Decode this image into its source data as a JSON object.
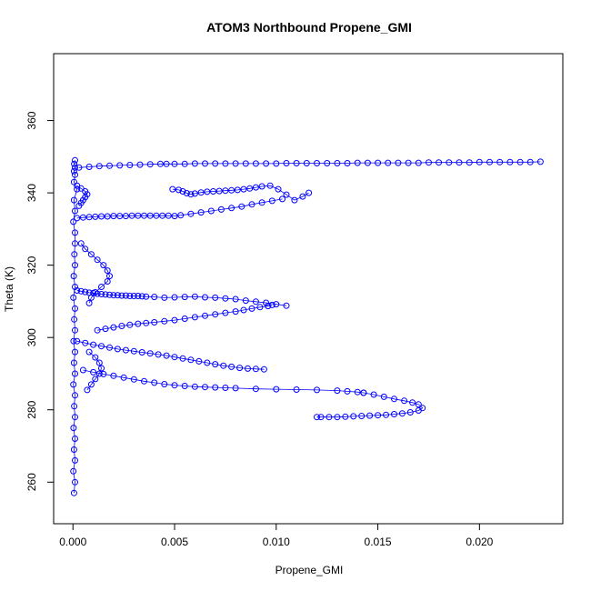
{
  "chart_data": {
    "type": "scatter",
    "title": "ATOM3 Northbound Propene_GMI",
    "xlabel": "Propene_GMI",
    "ylabel": "Theta (K)",
    "xlim": [
      -0.00095,
      0.0241
    ],
    "ylim": [
      248.5,
      378.5
    ],
    "x_ticks": [
      0.0,
      0.005,
      0.01,
      0.015,
      0.02
    ],
    "x_tick_labels": [
      "0.000",
      "0.005",
      "0.010",
      "0.015",
      "0.020"
    ],
    "y_ticks": [
      260,
      280,
      300,
      320,
      340,
      360
    ],
    "y_tick_labels": [
      "260",
      "280",
      "300",
      "320",
      "340",
      "360"
    ],
    "grid": false,
    "legend": "none",
    "marker": "open-circle",
    "connect_points": true,
    "color": "#0000ff",
    "series": [
      {
        "x": [
          5e-05,
          0.0001,
          2e-05,
          0.0001,
          5e-05,
          0.0001,
          3e-05,
          0.0001,
          6e-05,
          0.0001,
          2e-05,
          0.0001,
          5e-05,
          0.0001,
          3e-05,
          0.0001,
          6e-05,
          0.0001,
          2e-05,
          0.0001,
          4e-05,
          0.0001,
          7e-05,
          0.0001,
          0.0001,
          2e-05,
          0.0001,
          5e-05,
          0.0002,
          5e-05,
          0.0001,
          5e-05,
          0.0001,
          6e-05,
          0.0001
        ],
        "y": [
          257,
          260,
          263,
          266,
          269,
          272,
          275,
          278,
          281,
          284,
          287,
          290,
          293,
          296,
          299,
          302,
          305,
          308,
          311,
          314,
          317,
          320,
          323,
          326,
          329,
          332,
          335,
          338,
          341,
          343,
          345,
          346,
          347,
          348,
          349
        ]
      },
      {
        "x": [
          0.0003,
          0.0008,
          0.0013,
          0.0018,
          0.0023,
          0.0028,
          0.0033,
          0.0038,
          0.0043,
          0.0046,
          0.005,
          0.0055,
          0.006,
          0.0065,
          0.007,
          0.0075,
          0.008,
          0.0085,
          0.009,
          0.0095,
          0.01,
          0.0105,
          0.011,
          0.0115,
          0.012,
          0.0125,
          0.013,
          0.0135,
          0.014,
          0.0145,
          0.015,
          0.0155,
          0.016,
          0.0165,
          0.017,
          0.0175,
          0.018,
          0.0185,
          0.019,
          0.0195,
          0.02,
          0.0205,
          0.021,
          0.0215,
          0.022,
          0.0225,
          0.023
        ],
        "y": [
          347,
          347.2,
          347.4,
          347.5,
          347.6,
          347.7,
          347.8,
          347.9,
          348,
          348,
          348,
          348,
          348.1,
          348.1,
          348.1,
          348.1,
          348.1,
          348.1,
          348.1,
          348.1,
          348.1,
          348.2,
          348.2,
          348.2,
          348.2,
          348.2,
          348.2,
          348.2,
          348.3,
          348.3,
          348.3,
          348.3,
          348.3,
          348.3,
          348.3,
          348.4,
          348.4,
          348.4,
          348.4,
          348.4,
          348.5,
          348.5,
          348.5,
          348.5,
          348.5,
          348.5,
          348.6
        ]
      },
      {
        "x": [
          0.0049,
          0.0052,
          0.0054,
          0.0056,
          0.0058,
          0.006,
          0.0063,
          0.0066,
          0.0069,
          0.0072,
          0.0075,
          0.0078,
          0.0081,
          0.0084,
          0.0087,
          0.009,
          0.0093,
          0.0097,
          0.0101,
          0.0105,
          0.0109,
          0.0113,
          0.0116
        ],
        "y": [
          341,
          340.8,
          340.4,
          339.9,
          339.6,
          339.8,
          340.1,
          340.3,
          340.4,
          340.5,
          340.6,
          340.7,
          340.8,
          341,
          341.2,
          341.5,
          341.8,
          342,
          341,
          339.5,
          338,
          339,
          340
        ]
      },
      {
        "x": [
          0.0002,
          0.0005,
          0.0008,
          0.0011,
          0.0014,
          0.0017,
          0.002,
          0.0023,
          0.0026,
          0.0029,
          0.0032,
          0.0035,
          0.0038,
          0.0041,
          0.0044,
          0.0047,
          0.005,
          0.0053,
          0.0058,
          0.0063,
          0.0068,
          0.0073,
          0.0078,
          0.0083,
          0.0088,
          0.0093,
          0.0098,
          0.0103
        ],
        "y": [
          333,
          333.2,
          333.3,
          333.4,
          333.5,
          333.5,
          333.6,
          333.6,
          333.6,
          333.7,
          333.7,
          333.7,
          333.7,
          333.7,
          333.7,
          333.7,
          333.6,
          333.8,
          334.2,
          334.6,
          335,
          335.4,
          335.8,
          336.2,
          336.8,
          337.3,
          337.8,
          338.3
        ]
      },
      {
        "x": [
          0.0002,
          0.0004,
          0.0006,
          0.0008,
          0.001,
          0.0012,
          0.0014,
          0.0016,
          0.0018,
          0.002,
          0.0022,
          0.0024,
          0.0026,
          0.0028,
          0.003,
          0.0032,
          0.0034,
          0.0036,
          0.004,
          0.0045,
          0.005,
          0.0055,
          0.006,
          0.0065,
          0.007,
          0.0075,
          0.008,
          0.0085,
          0.009,
          0.0095,
          0.01,
          0.0105
        ],
        "y": [
          313,
          312.8,
          312.6,
          312.4,
          312.3,
          312.1,
          312,
          311.9,
          311.8,
          311.7,
          311.7,
          311.6,
          311.6,
          311.5,
          311.5,
          311.5,
          311.4,
          311.3,
          311.2,
          311,
          311.1,
          311.2,
          311.3,
          311.1,
          311,
          310.8,
          310.6,
          310.2,
          309.9,
          309.6,
          309.2,
          308.8
        ]
      },
      {
        "x": [
          0.0012,
          0.0016,
          0.002,
          0.0024,
          0.0028,
          0.0032,
          0.0036,
          0.004,
          0.0045,
          0.005,
          0.0055,
          0.006,
          0.0065,
          0.007,
          0.0075,
          0.008,
          0.0084,
          0.0088,
          0.0092,
          0.0096,
          0.0098
        ],
        "y": [
          302,
          302.4,
          302.8,
          303.2,
          303.5,
          303.8,
          304,
          304.2,
          304.5,
          304.8,
          305.2,
          305.6,
          306,
          306.4,
          306.8,
          307.2,
          307.6,
          308,
          308.4,
          308.7,
          309
        ]
      },
      {
        "x": [
          0.0002,
          0.0006,
          0.001,
          0.0014,
          0.0018,
          0.0022,
          0.0026,
          0.003,
          0.0034,
          0.0038,
          0.0042,
          0.0046,
          0.005,
          0.0054,
          0.0058,
          0.0062,
          0.0066,
          0.007,
          0.0074,
          0.0078,
          0.0082,
          0.0086,
          0.009,
          0.0094
        ],
        "y": [
          299,
          298.5,
          298,
          297.6,
          297.2,
          296.8,
          296.5,
          296.2,
          295.9,
          295.6,
          295.3,
          295,
          294.6,
          294.2,
          293.8,
          293.4,
          293,
          292.6,
          292.2,
          291.9,
          291.6,
          291.4,
          291.3,
          291.2
        ]
      },
      {
        "x": [
          0.0005,
          0.001,
          0.0015,
          0.002,
          0.0025,
          0.003,
          0.0035,
          0.004,
          0.0045,
          0.005,
          0.0055,
          0.006,
          0.0065,
          0.007,
          0.0075,
          0.008,
          0.009,
          0.01,
          0.011,
          0.012,
          0.013,
          0.0135,
          0.014,
          0.0143
        ],
        "y": [
          291,
          290.4,
          289.9,
          289.4,
          288.9,
          288.4,
          287.9,
          287.5,
          287.1,
          286.8,
          286.6,
          286.4,
          286.3,
          286.2,
          286.1,
          286,
          285.8,
          285.7,
          285.6,
          285.5,
          285.3,
          285.1,
          284.9,
          284.7
        ]
      },
      {
        "x": [
          0.0143,
          0.0148,
          0.0153,
          0.0158,
          0.0163,
          0.0167,
          0.017,
          0.0172,
          0.017,
          0.0166,
          0.0162,
          0.0158,
          0.0154,
          0.015,
          0.0146,
          0.0142,
          0.0138,
          0.0134,
          0.013,
          0.0126,
          0.0122,
          0.012
        ],
        "y": [
          284.7,
          284.2,
          283.6,
          283,
          282.5,
          282,
          281.5,
          280.5,
          279.8,
          279.3,
          279,
          278.8,
          278.6,
          278.5,
          278.4,
          278.3,
          278.2,
          278.1,
          278,
          278,
          278,
          278
        ]
      },
      {
        "x": [
          0.0004,
          0.0006,
          0.0009,
          0.0012,
          0.0015,
          0.0017,
          0.0018,
          0.0017,
          0.0014,
          0.0011,
          0.0009,
          0.0008
        ],
        "y": [
          326,
          324.5,
          323,
          321.5,
          320,
          318.5,
          317,
          315.5,
          314,
          312.5,
          311,
          309.5
        ]
      },
      {
        "x": [
          0.0008,
          0.0011,
          0.0013,
          0.0014,
          0.0013,
          0.0011,
          0.0009,
          0.0007
        ],
        "y": [
          296,
          294.5,
          293,
          291.5,
          290,
          288.5,
          287,
          285.5
        ]
      },
      {
        "x": [
          0.0002,
          0.0004,
          0.0006,
          0.0007,
          0.0006,
          0.0005,
          0.0004,
          0.0003
        ],
        "y": [
          342,
          341.2,
          340.4,
          339.6,
          338.8,
          338,
          337.2,
          336.4
        ]
      }
    ]
  }
}
